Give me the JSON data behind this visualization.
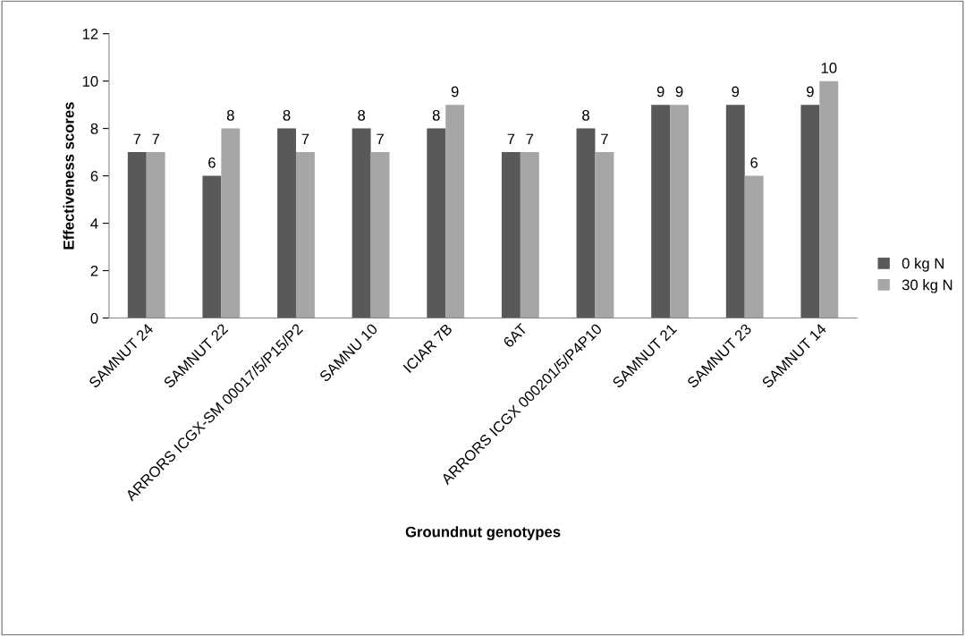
{
  "chart_data": {
    "type": "bar",
    "xlabel": "Groundnut genotypes",
    "ylabel": "Effectiveness scores",
    "categories": [
      "SAMNUT 24",
      "SAMNUT 22",
      "ARRORS ICGX-SM 00017/5/P15/P2",
      "SAMNU 10",
      "ICIAR 7B",
      "6AT",
      "ARRORS ICGX 000201/5/P4P10",
      "SAMNUT 21",
      "SAMNUT 23",
      "SAMNUT 14"
    ],
    "series": [
      {
        "name": "0 kg N",
        "color": "#595959",
        "values": [
          7,
          6,
          8,
          8,
          8,
          7,
          8,
          9,
          9,
          9
        ]
      },
      {
        "name": "30 kg N",
        "color": "#a6a6a6",
        "values": [
          7,
          8,
          7,
          7,
          9,
          7,
          7,
          9,
          6,
          10
        ]
      }
    ],
    "ylim": [
      0,
      12
    ],
    "yticks": [
      0,
      2,
      4,
      6,
      8,
      10,
      12
    ],
    "data_labels": true,
    "legend": "right",
    "grid": false
  }
}
